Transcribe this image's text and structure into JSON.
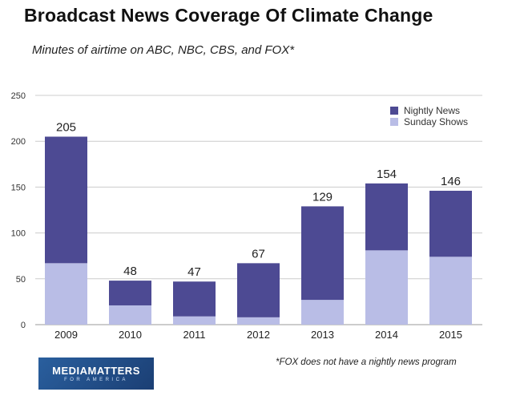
{
  "title": "Broadcast News Coverage Of Climate Change",
  "subtitle": "Minutes of airtime on ABC, NBC, CBS, and FOX*",
  "footnote": "*FOX does not have a nightly news program",
  "logo": {
    "main": "MEDIAMATTERS",
    "sub": "FOR AMERICA"
  },
  "colors": {
    "nightly": "#4d4a93",
    "sunday": "#b9bde6",
    "grid": "#cccccc"
  },
  "chart_data": {
    "type": "bar",
    "stacked": true,
    "categories": [
      "2009",
      "2010",
      "2011",
      "2012",
      "2013",
      "2014",
      "2015"
    ],
    "series": [
      {
        "name": "Sunday Shows",
        "values": [
          67,
          21,
          9,
          8,
          27,
          81,
          74
        ]
      },
      {
        "name": "Nightly News",
        "values": [
          138,
          27,
          38,
          59,
          102,
          73,
          72
        ]
      }
    ],
    "totals": [
      205,
      48,
      47,
      67,
      129,
      154,
      146
    ],
    "yticks": [
      0,
      50,
      100,
      150,
      200,
      250
    ],
    "ylim": [
      0,
      250
    ],
    "grid": true,
    "legend": [
      "Nightly News",
      "Sunday Shows"
    ],
    "legend_position": "top-right"
  }
}
